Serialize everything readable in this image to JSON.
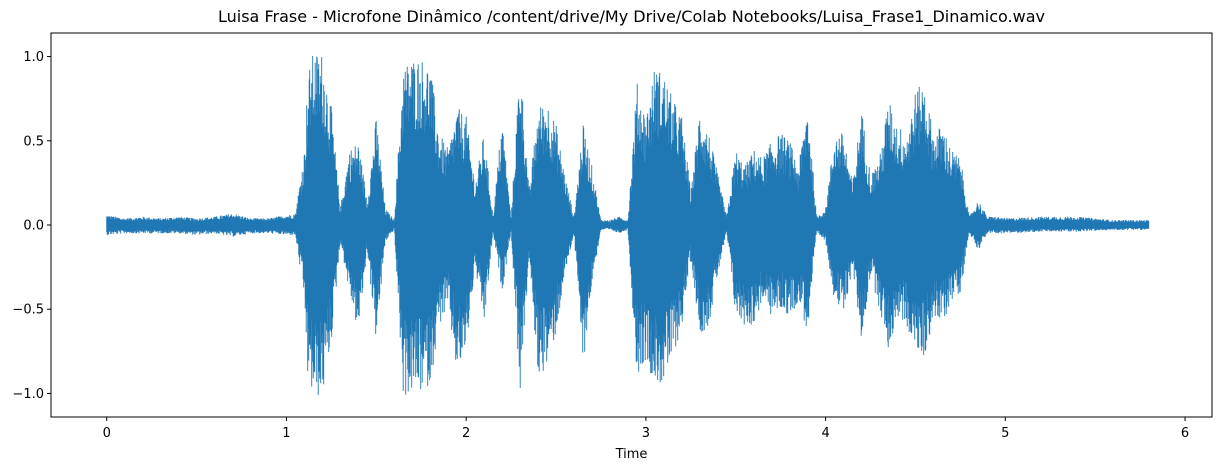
{
  "chart_data": {
    "type": "area",
    "title": "Luisa Frase - Microfone Dinâmico /content/drive/My Drive/Colab Notebooks/Luisa_Frase1_Dinamico.wav",
    "xlabel": "Time",
    "ylabel": "",
    "xlim": [
      -0.31,
      6.15
    ],
    "ylim": [
      -1.14,
      1.14
    ],
    "x_ticks": [
      0,
      1,
      2,
      3,
      4,
      5,
      6
    ],
    "x_tick_labels": [
      "0",
      "1",
      "2",
      "3",
      "4",
      "5",
      "6"
    ],
    "y_ticks": [
      1.0,
      0.5,
      0.0,
      -0.5,
      -1.0
    ],
    "y_tick_labels": [
      "1.0",
      "0.5",
      "0.0",
      "−0.5",
      "−1.0"
    ],
    "grid": false,
    "series": [
      {
        "color": "#1f77b4",
        "envelope": {
          "t": [
            0.0,
            0.1,
            0.2,
            0.3,
            0.4,
            0.5,
            0.6,
            0.7,
            0.8,
            0.9,
            1.0,
            1.05,
            1.1,
            1.12,
            1.15,
            1.2,
            1.25,
            1.3,
            1.35,
            1.4,
            1.45,
            1.5,
            1.55,
            1.6,
            1.65,
            1.7,
            1.75,
            1.8,
            1.85,
            1.9,
            1.95,
            2.0,
            2.05,
            2.1,
            2.15,
            2.2,
            2.25,
            2.3,
            2.35,
            2.4,
            2.45,
            2.5,
            2.55,
            2.6,
            2.65,
            2.7,
            2.75,
            2.8,
            2.85,
            2.9,
            2.95,
            3.0,
            3.05,
            3.1,
            3.15,
            3.2,
            3.25,
            3.3,
            3.35,
            3.4,
            3.45,
            3.5,
            3.55,
            3.6,
            3.65,
            3.7,
            3.75,
            3.8,
            3.85,
            3.9,
            3.95,
            4.0,
            4.05,
            4.1,
            4.15,
            4.2,
            4.25,
            4.3,
            4.35,
            4.4,
            4.45,
            4.5,
            4.55,
            4.6,
            4.65,
            4.7,
            4.75,
            4.8,
            4.85,
            4.9,
            4.95,
            5.0,
            5.2,
            5.4,
            5.6,
            5.8
          ],
          "max": [
            0.06,
            0.04,
            0.05,
            0.04,
            0.05,
            0.04,
            0.05,
            0.07,
            0.04,
            0.04,
            0.06,
            0.07,
            0.45,
            0.9,
            1.03,
            1.03,
            0.7,
            0.1,
            0.45,
            0.5,
            0.15,
            0.65,
            0.1,
            0.03,
            0.95,
            1.0,
            1.0,
            0.95,
            0.55,
            0.45,
            0.7,
            0.65,
            0.25,
            0.55,
            0.05,
            0.65,
            0.04,
            1.0,
            0.2,
            0.7,
            0.75,
            0.6,
            0.3,
            0.05,
            0.6,
            0.35,
            0.03,
            0.03,
            0.05,
            0.03,
            0.85,
            0.65,
            0.95,
            0.9,
            0.75,
            0.65,
            0.2,
            0.7,
            0.55,
            0.3,
            0.05,
            0.45,
            0.35,
            0.45,
            0.4,
            0.5,
            0.55,
            0.5,
            0.35,
            0.75,
            0.05,
            0.1,
            0.55,
            0.55,
            0.25,
            0.7,
            0.3,
            0.4,
            0.75,
            0.6,
            0.55,
            0.8,
            0.85,
            0.55,
            0.6,
            0.45,
            0.4,
            0.05,
            0.15,
            0.05,
            0.05,
            0.04,
            0.05,
            0.05,
            0.03,
            0.03
          ],
          "min": [
            -0.06,
            -0.05,
            -0.05,
            -0.05,
            -0.05,
            -0.06,
            -0.05,
            -0.07,
            -0.05,
            -0.05,
            -0.06,
            -0.06,
            -0.45,
            -0.95,
            -1.03,
            -1.03,
            -0.7,
            -0.1,
            -0.4,
            -0.65,
            -0.15,
            -0.7,
            -0.1,
            -0.03,
            -1.03,
            -1.0,
            -1.0,
            -0.95,
            -0.6,
            -0.5,
            -0.9,
            -0.75,
            -0.25,
            -0.6,
            -0.05,
            -0.4,
            -0.04,
            -1.0,
            -0.2,
            -0.9,
            -0.85,
            -0.65,
            -0.3,
            -0.05,
            -0.85,
            -0.35,
            -0.03,
            -0.03,
            -0.05,
            -0.03,
            -0.9,
            -0.8,
            -0.95,
            -0.95,
            -0.8,
            -0.6,
            -0.2,
            -0.65,
            -0.6,
            -0.3,
            -0.05,
            -0.55,
            -0.6,
            -0.6,
            -0.45,
            -0.55,
            -0.5,
            -0.55,
            -0.45,
            -0.65,
            -0.05,
            -0.1,
            -0.45,
            -0.55,
            -0.25,
            -0.7,
            -0.3,
            -0.5,
            -0.75,
            -0.55,
            -0.6,
            -0.75,
            -0.8,
            -0.55,
            -0.6,
            -0.45,
            -0.4,
            -0.05,
            -0.15,
            -0.05,
            -0.05,
            -0.05,
            -0.04,
            -0.04,
            -0.03,
            -0.03
          ]
        }
      }
    ]
  }
}
